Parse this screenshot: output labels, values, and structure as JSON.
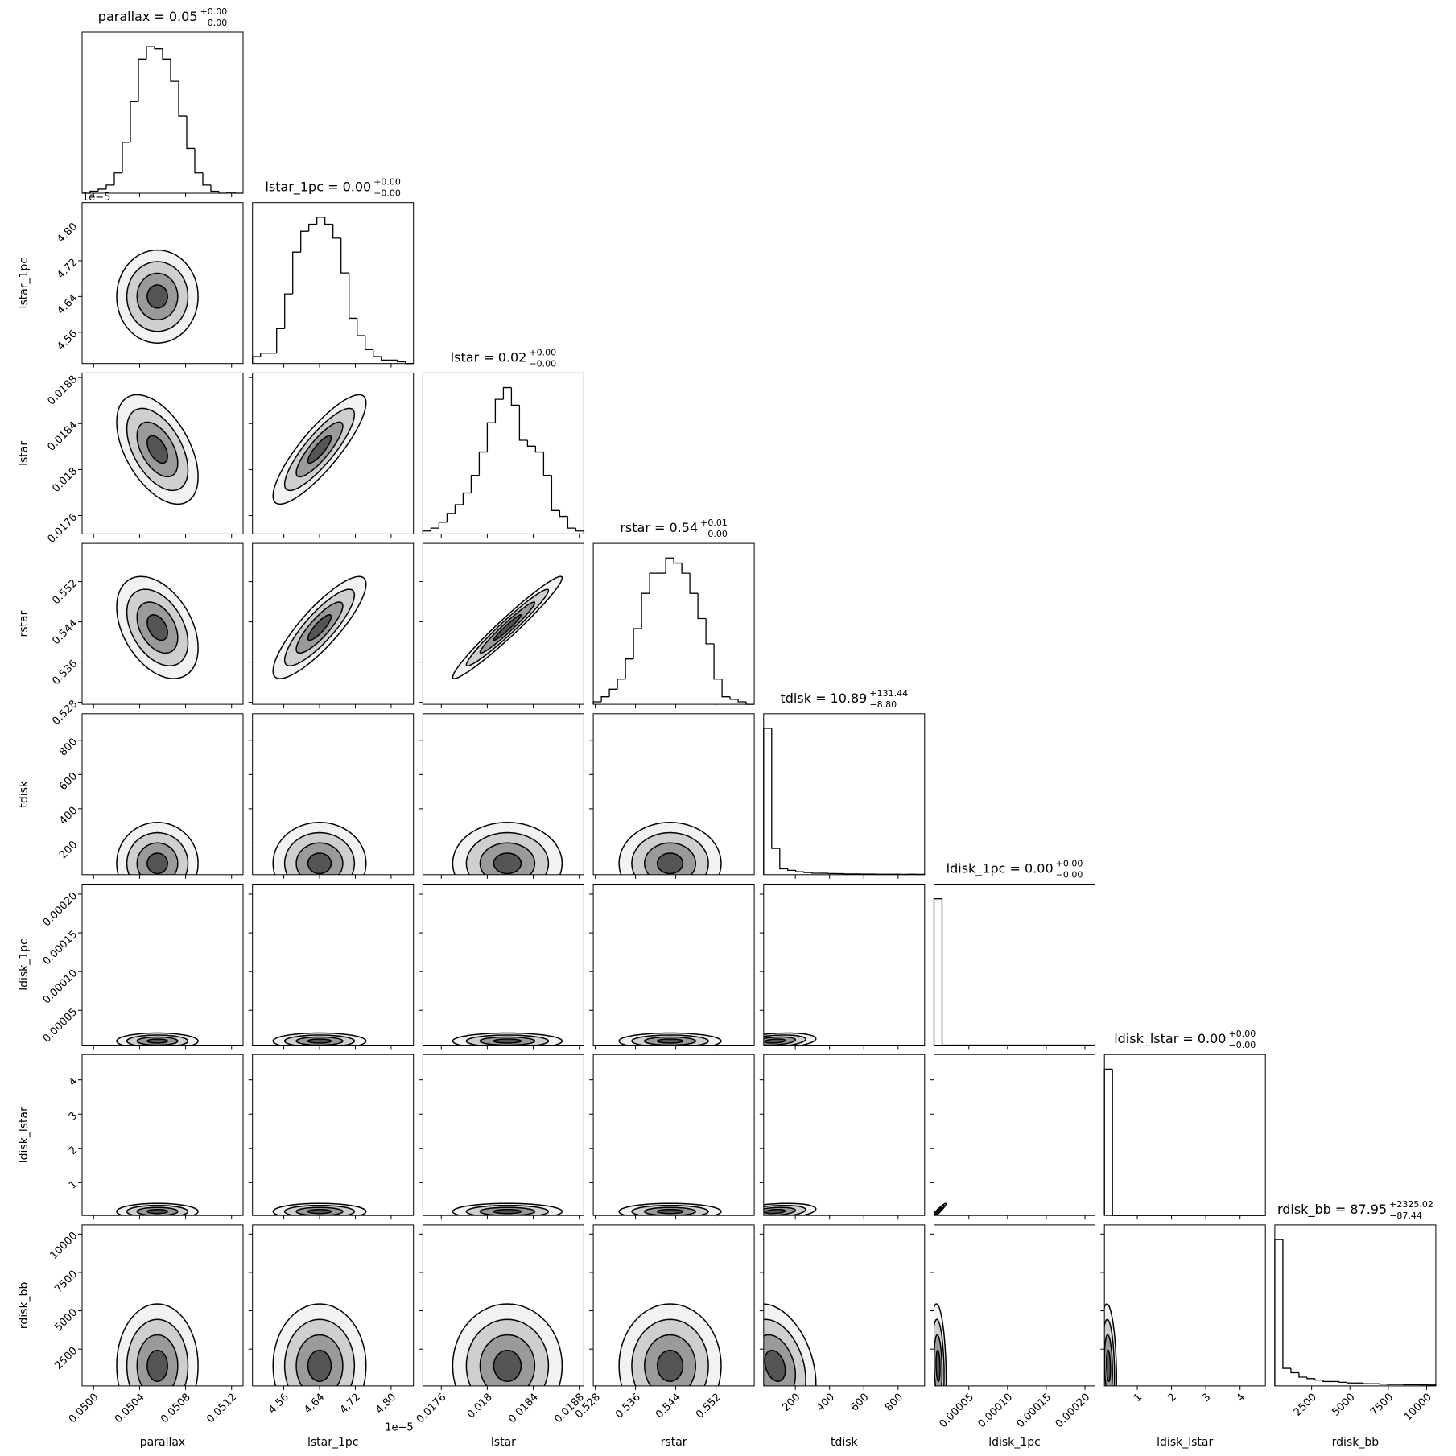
{
  "chart_data": {
    "type": "corner",
    "color": "#000000",
    "parameters": [
      {
        "name": "parallax",
        "title": "parallax = 0.05",
        "title_upper": "+0.00",
        "title_lower": "−0.00",
        "lim": [
          0.0499,
          0.0513
        ],
        "ticks": [
          {
            "value": 0.05,
            "label": "0.0500"
          },
          {
            "value": 0.0504,
            "label": "0.0504"
          },
          {
            "value": 0.0508,
            "label": "0.0508"
          },
          {
            "value": 0.0512,
            "label": "0.0512"
          }
        ],
        "bins": [
          0.0499,
          0.04997,
          0.05004,
          0.05011,
          0.05018,
          0.05025,
          0.05032,
          0.05039,
          0.05046,
          0.05053,
          0.0506,
          0.05067,
          0.05074,
          0.05081,
          0.05088,
          0.05095,
          0.05102,
          0.05109,
          0.05116,
          0.05123,
          0.0513
        ],
        "counts": [
          0,
          2,
          4,
          8,
          20,
          50,
          90,
          132,
          144,
          142,
          132,
          110,
          76,
          44,
          20,
          8,
          2,
          0,
          1,
          0
        ]
      },
      {
        "name": "lstar_1pc",
        "title": "lstar_1pc = 0.00",
        "title_upper": "+0.00",
        "title_lower": "−0.00",
        "offset": "1e−5",
        "lim": [
          4.49e-05,
          4.85e-05
        ],
        "ticks": [
          {
            "value": 4.56e-05,
            "label": "4.56"
          },
          {
            "value": 4.64e-05,
            "label": "4.64"
          },
          {
            "value": 4.72e-05,
            "label": "4.72"
          },
          {
            "value": 4.8e-05,
            "label": "4.80"
          }
        ],
        "bins": [
          4.49e-05,
          4.508e-05,
          4.526e-05,
          4.544e-05,
          4.562e-05,
          4.58e-05,
          4.598e-05,
          4.616e-05,
          4.634e-05,
          4.652e-05,
          4.67e-05,
          4.688e-05,
          4.706e-05,
          4.724e-05,
          4.742e-05,
          4.76e-05,
          4.778e-05,
          4.796e-05,
          4.814e-05,
          4.832e-05,
          4.85e-05
        ],
        "counts": [
          4,
          6,
          6,
          20,
          40,
          64,
          76,
          80,
          84,
          80,
          72,
          52,
          26,
          16,
          8,
          4,
          2,
          2,
          1,
          0
        ]
      },
      {
        "name": "lstar",
        "title": "lstar = 0.02",
        "title_upper": "+0.00",
        "title_lower": "−0.00",
        "lim": [
          0.01744,
          0.01884
        ],
        "ticks": [
          0.0176,
          0.018,
          {
            "value": 0.0184,
            "label": "0.0184"
          },
          0.0188
        ],
        "bins": [
          0.01744,
          0.01751,
          0.01758,
          0.01765,
          0.01772,
          0.01779,
          0.01786,
          0.01793,
          0.018,
          0.01807,
          0.01814,
          0.01821,
          0.01828,
          0.01835,
          0.01842,
          0.01849,
          0.01856,
          0.01863,
          0.0187,
          0.01877,
          0.01884
        ],
        "counts": [
          1,
          2,
          4,
          7,
          10,
          14,
          20,
          28,
          38,
          46,
          50,
          44,
          32,
          30,
          28,
          20,
          8,
          6,
          2,
          1
        ]
      },
      {
        "name": "rstar",
        "title": "rstar = 0.54",
        "title_upper": "+0.01",
        "title_lower": "−0.00",
        "lim": [
          0.5276,
          0.5596
        ],
        "ticks": [
          0.528,
          0.536,
          0.544,
          0.552
        ],
        "bins": [
          0.5276,
          0.5292,
          0.5308,
          0.5324,
          0.534,
          0.5356,
          0.5372,
          0.5388,
          0.5404,
          0.542,
          0.5436,
          0.5452,
          0.5468,
          0.5484,
          0.55,
          0.5516,
          0.5532,
          0.5548,
          0.5564,
          0.558,
          0.5596
        ],
        "counts": [
          1,
          3,
          6,
          10,
          18,
          30,
          44,
          52,
          52,
          58,
          56,
          52,
          44,
          34,
          24,
          10,
          3,
          2,
          1,
          0
        ]
      },
      {
        "name": "tdisk",
        "title": "tdisk = 10.89",
        "title_upper": "+131.44",
        "title_lower": "−8.80",
        "lim": [
          15,
          955
        ],
        "ticks": [
          200,
          400,
          600,
          800
        ],
        "bins": [
          15,
          62,
          109,
          156,
          203,
          250,
          297,
          344,
          391,
          438,
          485,
          532,
          579,
          626,
          673,
          720,
          767,
          814,
          861,
          908,
          955
        ],
        "counts": [
          100,
          18,
          4,
          3,
          2,
          1.5,
          1,
          1,
          0.8,
          0.7,
          0.5,
          0.5,
          0.4,
          0.4,
          0.3,
          0.3,
          0.3,
          0.2,
          0.3,
          0.2
        ]
      },
      {
        "name": "ldisk_1pc",
        "title": "ldisk_1pc = 0.00",
        "title_upper": "+0.00",
        "title_lower": "−0.00",
        "lim": [
          5e-06,
          0.000213
        ],
        "ticks": [
          {
            "value": 5e-05,
            "label": "0.00005"
          },
          {
            "value": 0.0001,
            "label": "0.00010"
          },
          {
            "value": 0.00015,
            "label": "0.00015"
          },
          {
            "value": 0.0002,
            "label": "0.00020"
          }
        ],
        "bins": [
          5e-06,
          1.54e-05,
          2.58e-05,
          3.62e-05,
          4.66e-05,
          5.7e-05,
          6.74e-05,
          7.78e-05,
          8.82e-05,
          9.86e-05,
          0.000109,
          0.0001194,
          0.0001298,
          0.0001402,
          0.0001506,
          0.000161,
          0.0001714,
          0.0001818,
          0.0001922,
          0.0002026,
          0.000213
        ],
        "counts": [
          100,
          0,
          0,
          0,
          0,
          0,
          0,
          0,
          0,
          0,
          0,
          0,
          0,
          0,
          0,
          0,
          0,
          0,
          0,
          0
        ]
      },
      {
        "name": "ldisk_lstar",
        "title": "ldisk_lstar = 0.00",
        "title_upper": "+0.00",
        "title_lower": "−0.00",
        "lim": [
          0.04,
          4.74
        ],
        "ticks": [
          1,
          2,
          3,
          4
        ],
        "bins": [
          0.04,
          0.275,
          0.51,
          0.745,
          0.98,
          1.215,
          1.45,
          1.685,
          1.92,
          2.155,
          2.39,
          2.625,
          2.86,
          3.095,
          3.33,
          3.565,
          3.8,
          4.035,
          4.27,
          4.505,
          4.74
        ],
        "counts": [
          100,
          0,
          0,
          0,
          0,
          0,
          0,
          0,
          0,
          0,
          0,
          0,
          0,
          0,
          0,
          0,
          0,
          0,
          0,
          0
        ]
      },
      {
        "name": "rdisk_bb",
        "title": "rdisk_bb = 87.95",
        "title_upper": "+2325.02",
        "title_lower": "−87.44",
        "lim": [
          100,
          10600
        ],
        "ticks": [
          2500,
          5000,
          7500,
          10000
        ],
        "bins": [
          100,
          625,
          1150,
          1675,
          2200,
          2725,
          3250,
          3775,
          4300,
          4825,
          5350,
          5875,
          6400,
          6925,
          7450,
          7975,
          8500,
          9025,
          9550,
          10075,
          10600
        ],
        "counts": [
          100,
          12,
          9,
          6,
          5,
          4,
          3,
          3,
          2.5,
          2,
          2,
          1.5,
          1.5,
          1.2,
          1,
          1,
          0.8,
          0.8,
          0.7,
          0.6
        ]
      }
    ],
    "correlation": [
      [],
      [
        0
      ],
      [
        -0.5,
        0.85
      ],
      [
        -0.4,
        0.85,
        0.97
      ],
      [
        0,
        0,
        0,
        0
      ],
      [
        0,
        0,
        0,
        0,
        0.3
      ],
      [
        0,
        0,
        0,
        0,
        0.3,
        0.95
      ],
      [
        0,
        0,
        0,
        0,
        -0.3,
        -0.2,
        -0.2
      ]
    ]
  }
}
